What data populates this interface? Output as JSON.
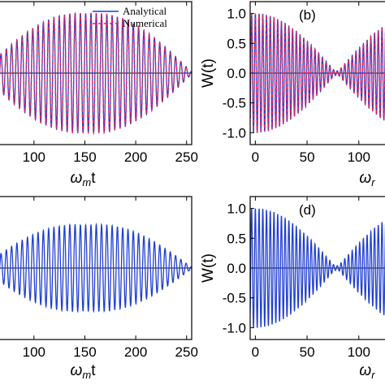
{
  "chart_data": [
    {
      "panel": "a",
      "type": "line",
      "xlim": [
        65,
        255
      ],
      "ylim": [
        -1.2,
        1.2
      ],
      "xticks": [
        100,
        150,
        200,
        250
      ],
      "xlabel_main": "ω",
      "xlabel_sub": "m",
      "xlabel_tail": "t",
      "legend": {
        "position": "top-right",
        "entries": [
          "Analytical",
          "Numerical"
        ]
      },
      "series": [
        {
          "name": "Analytical",
          "color": "#1f3fd1",
          "style": "solid",
          "envelope_peak": 1.0,
          "envelope_center": 152,
          "envelope_halfwidth": 104,
          "period": 5.2
        },
        {
          "name": "Numerical",
          "color": "#e0245e",
          "style": "dashed",
          "envelope_peak": 1.0,
          "envelope_center": 152,
          "envelope_halfwidth": 104,
          "period": 5.2
        }
      ]
    },
    {
      "panel": "b",
      "label": "(b)",
      "type": "line",
      "xlim": [
        -5,
        130
      ],
      "ylim": [
        -1.2,
        1.2
      ],
      "xticks": [
        0,
        50,
        100
      ],
      "yticks": [
        "1.0",
        "0.5",
        "0.0",
        "-0.5",
        "-1.0"
      ],
      "ylabel": "W(t)",
      "xlabel_main": "ω",
      "xlabel_sub": "r",
      "series": [
        {
          "name": "Analytical",
          "color": "#1f3fd1",
          "style": "solid",
          "envelope_amplitude": 1.0,
          "envelope_period": 157,
          "period": 3.6
        },
        {
          "name": "Numerical",
          "color": "#e0245e",
          "style": "dashed",
          "envelope_amplitude": 1.0,
          "envelope_period": 157,
          "period": 3.6
        }
      ]
    },
    {
      "panel": "c",
      "type": "line",
      "xlim": [
        65,
        255
      ],
      "ylim": [
        -1.2,
        1.2
      ],
      "xticks": [
        100,
        150,
        200,
        250
      ],
      "xlabel_main": "ω",
      "xlabel_sub": "m",
      "xlabel_tail": "t",
      "series": [
        {
          "color": "#1f3fd1",
          "style": "solid",
          "envelope_peak": 0.72,
          "envelope_center": 152,
          "envelope_halfwidth": 104,
          "period": 5.2
        }
      ]
    },
    {
      "panel": "d",
      "label": "(d)",
      "type": "line",
      "xlim": [
        -5,
        130
      ],
      "ylim": [
        -1.2,
        1.2
      ],
      "xticks": [
        0,
        50,
        100
      ],
      "yticks": [
        "1.0",
        "0.5",
        "0.0",
        "-0.5",
        "-1.0"
      ],
      "ylabel": "W(t)",
      "xlabel_main": "ω",
      "xlabel_sub": "r",
      "series": [
        {
          "color": "#1f3fd1",
          "style": "solid",
          "envelope_amplitude": 1.0,
          "envelope_period": 157,
          "period": 3.6
        }
      ]
    }
  ]
}
